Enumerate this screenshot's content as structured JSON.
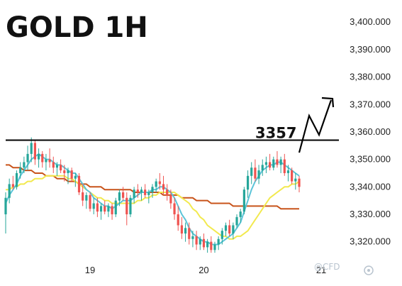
{
  "chart_data": {
    "type": "candlestick",
    "title": "GOLD 1H",
    "ylim": [
      3315,
      3406
    ],
    "y_ticks": [
      "3,400.000",
      "3,390.000",
      "3,380.000",
      "3,370.000",
      "3,360.000",
      "3,350.000",
      "3,340.000",
      "3,330.000",
      "3,320.000"
    ],
    "y_tick_values": [
      3400,
      3390,
      3380,
      3370,
      3360,
      3350,
      3340,
      3330,
      3320
    ],
    "x_ticks": [
      "19",
      "20",
      "21"
    ],
    "x_tick_bar_index": [
      23,
      54,
      86
    ],
    "level": {
      "label": "3357",
      "value": 3357
    },
    "up_color": "#26a69a",
    "down_color": "#ef5350",
    "ma_colors": {
      "fast": "#5bc4d8",
      "medium": "#f2e94e",
      "slow": "#c8531a"
    },
    "candles": [
      [
        3330,
        3338,
        3323,
        3336
      ],
      [
        3336,
        3343,
        3334,
        3341
      ],
      [
        3341,
        3344,
        3339,
        3340
      ],
      [
        3340,
        3346,
        3339,
        3345
      ],
      [
        3345,
        3349,
        3343,
        3347
      ],
      [
        3347,
        3351,
        3345,
        3349
      ],
      [
        3349,
        3355,
        3346,
        3352
      ],
      [
        3352,
        3358,
        3349,
        3356
      ],
      [
        3356,
        3357,
        3348,
        3350
      ],
      [
        3350,
        3354,
        3347,
        3352
      ],
      [
        3352,
        3353,
        3347,
        3349
      ],
      [
        3349,
        3352,
        3346,
        3350
      ],
      [
        3350,
        3354,
        3347,
        3349
      ],
      [
        3349,
        3351,
        3345,
        3347
      ],
      [
        3347,
        3349,
        3344,
        3348
      ],
      [
        3348,
        3350,
        3345,
        3346
      ],
      [
        3346,
        3348,
        3342,
        3345
      ],
      [
        3345,
        3347,
        3341,
        3346
      ],
      [
        3346,
        3347,
        3342,
        3343
      ],
      [
        3343,
        3345,
        3340,
        3344
      ],
      [
        3344,
        3345,
        3337,
        3338
      ],
      [
        3338,
        3341,
        3333,
        3335
      ],
      [
        3335,
        3338,
        3332,
        3337
      ],
      [
        3337,
        3338,
        3331,
        3332
      ],
      [
        3332,
        3336,
        3330,
        3334
      ],
      [
        3334,
        3336,
        3329,
        3331
      ],
      [
        3331,
        3334,
        3328,
        3333
      ],
      [
        3333,
        3335,
        3330,
        3331
      ],
      [
        3331,
        3334,
        3329,
        3333
      ],
      [
        3333,
        3334,
        3328,
        3330
      ],
      [
        3330,
        3336,
        3329,
        3335
      ],
      [
        3335,
        3339,
        3333,
        3338
      ],
      [
        3338,
        3340,
        3335,
        3336
      ],
      [
        3336,
        3338,
        3326,
        3330
      ],
      [
        3330,
        3337,
        3329,
        3336
      ],
      [
        3336,
        3340,
        3334,
        3339
      ],
      [
        3339,
        3341,
        3336,
        3338
      ],
      [
        3338,
        3340,
        3335,
        3339
      ],
      [
        3339,
        3341,
        3336,
        3337
      ],
      [
        3337,
        3339,
        3334,
        3338
      ],
      [
        3338,
        3341,
        3336,
        3340
      ],
      [
        3340,
        3343,
        3338,
        3342
      ],
      [
        3342,
        3345,
        3339,
        3341
      ],
      [
        3341,
        3344,
        3337,
        3339
      ],
      [
        3339,
        3341,
        3335,
        3337
      ],
      [
        3337,
        3339,
        3332,
        3334
      ],
      [
        3334,
        3336,
        3328,
        3330
      ],
      [
        3330,
        3333,
        3324,
        3326
      ],
      [
        3326,
        3329,
        3321,
        3323
      ],
      [
        3323,
        3327,
        3320,
        3325
      ],
      [
        3325,
        3327,
        3319,
        3321
      ],
      [
        3321,
        3324,
        3318,
        3322
      ],
      [
        3322,
        3324,
        3317,
        3319
      ],
      [
        3319,
        3322,
        3317,
        3321
      ],
      [
        3321,
        3323,
        3317,
        3318
      ],
      [
        3318,
        3321,
        3316,
        3320
      ],
      [
        3320,
        3322,
        3316,
        3317
      ],
      [
        3317,
        3320,
        3316,
        3319
      ],
      [
        3319,
        3322,
        3317,
        3321
      ],
      [
        3321,
        3325,
        3319,
        3324
      ],
      [
        3324,
        3327,
        3322,
        3326
      ],
      [
        3326,
        3328,
        3322,
        3323
      ],
      [
        3323,
        3327,
        3321,
        3326
      ],
      [
        3326,
        3330,
        3325,
        3329
      ],
      [
        3329,
        3332,
        3327,
        3331
      ],
      [
        3331,
        3340,
        3330,
        3339
      ],
      [
        3339,
        3346,
        3336,
        3344
      ],
      [
        3344,
        3349,
        3341,
        3347
      ],
      [
        3347,
        3350,
        3342,
        3343
      ],
      [
        3343,
        3348,
        3341,
        3346
      ],
      [
        3346,
        3350,
        3344,
        3348
      ],
      [
        3348,
        3351,
        3345,
        3349
      ],
      [
        3349,
        3352,
        3346,
        3347
      ],
      [
        3347,
        3351,
        3346,
        3350
      ],
      [
        3350,
        3353,
        3347,
        3348
      ],
      [
        3348,
        3351,
        3345,
        3350
      ],
      [
        3350,
        3352,
        3344,
        3345
      ],
      [
        3345,
        3348,
        3342,
        3346
      ],
      [
        3346,
        3347,
        3341,
        3342
      ],
      [
        3342,
        3345,
        3339,
        3343
      ],
      [
        3343,
        3344,
        3338,
        3340
      ]
    ],
    "ma_fast": [
      3334,
      3337,
      3339,
      3341,
      3344,
      3346,
      3348,
      3350,
      3351,
      3352,
      3351,
      3350,
      3350,
      3349,
      3348,
      3348,
      3347,
      3346,
      3345,
      3345,
      3343,
      3341,
      3339,
      3338,
      3336,
      3335,
      3334,
      3333,
      3333,
      3332,
      3333,
      3334,
      3335,
      3335,
      3335,
      3336,
      3337,
      3338,
      3338,
      3338,
      3339,
      3339,
      3340,
      3340,
      3339,
      3338,
      3336,
      3333,
      3330,
      3328,
      3325,
      3323,
      3322,
      3321,
      3320,
      3320,
      3319,
      3319,
      3319,
      3320,
      3321,
      3322,
      3323,
      3325,
      3327,
      3331,
      3335,
      3339,
      3342,
      3344,
      3346,
      3347,
      3348,
      3348,
      3349,
      3349,
      3348,
      3347,
      3346,
      3345,
      3344
    ],
    "ma_medium": [
      3339,
      3339,
      3340,
      3340,
      3341,
      3341,
      3342,
      3342,
      3343,
      3343,
      3343,
      3344,
      3344,
      3344,
      3344,
      3344,
      3344,
      3343,
      3343,
      3342,
      3341,
      3340,
      3339,
      3338,
      3337,
      3336,
      3336,
      3335,
      3335,
      3334,
      3334,
      3334,
      3334,
      3334,
      3334,
      3334,
      3335,
      3335,
      3336,
      3336,
      3337,
      3337,
      3338,
      3338,
      3338,
      3338,
      3338,
      3337,
      3336,
      3335,
      3334,
      3332,
      3331,
      3329,
      3328,
      3326,
      3325,
      3324,
      3323,
      3322,
      3322,
      3321,
      3321,
      3322,
      3322,
      3323,
      3324,
      3326,
      3328,
      3330,
      3332,
      3334,
      3336,
      3337,
      3338,
      3339,
      3340,
      3340,
      3341,
      3341,
      3342
    ],
    "ma_slow": [
      3348,
      3348,
      3347,
      3347,
      3347,
      3346,
      3346,
      3346,
      3345,
      3345,
      3345,
      3344,
      3344,
      3344,
      3343,
      3343,
      3343,
      3342,
      3342,
      3342,
      3341,
      3341,
      3341,
      3340,
      3340,
      3340,
      3340,
      3339,
      3339,
      3339,
      3339,
      3339,
      3339,
      3339,
      3339,
      3338,
      3338,
      3338,
      3338,
      3338,
      3338,
      3338,
      3338,
      3337,
      3337,
      3337,
      3337,
      3337,
      3336,
      3336,
      3336,
      3336,
      3335,
      3335,
      3335,
      3335,
      3334,
      3334,
      3334,
      3334,
      3334,
      3334,
      3333,
      3333,
      3333,
      3333,
      3333,
      3333,
      3333,
      3333,
      3333,
      3333,
      3333,
      3333,
      3333,
      3332,
      3332,
      3332,
      3332,
      3332,
      3332
    ]
  },
  "watermark": "@CFD"
}
